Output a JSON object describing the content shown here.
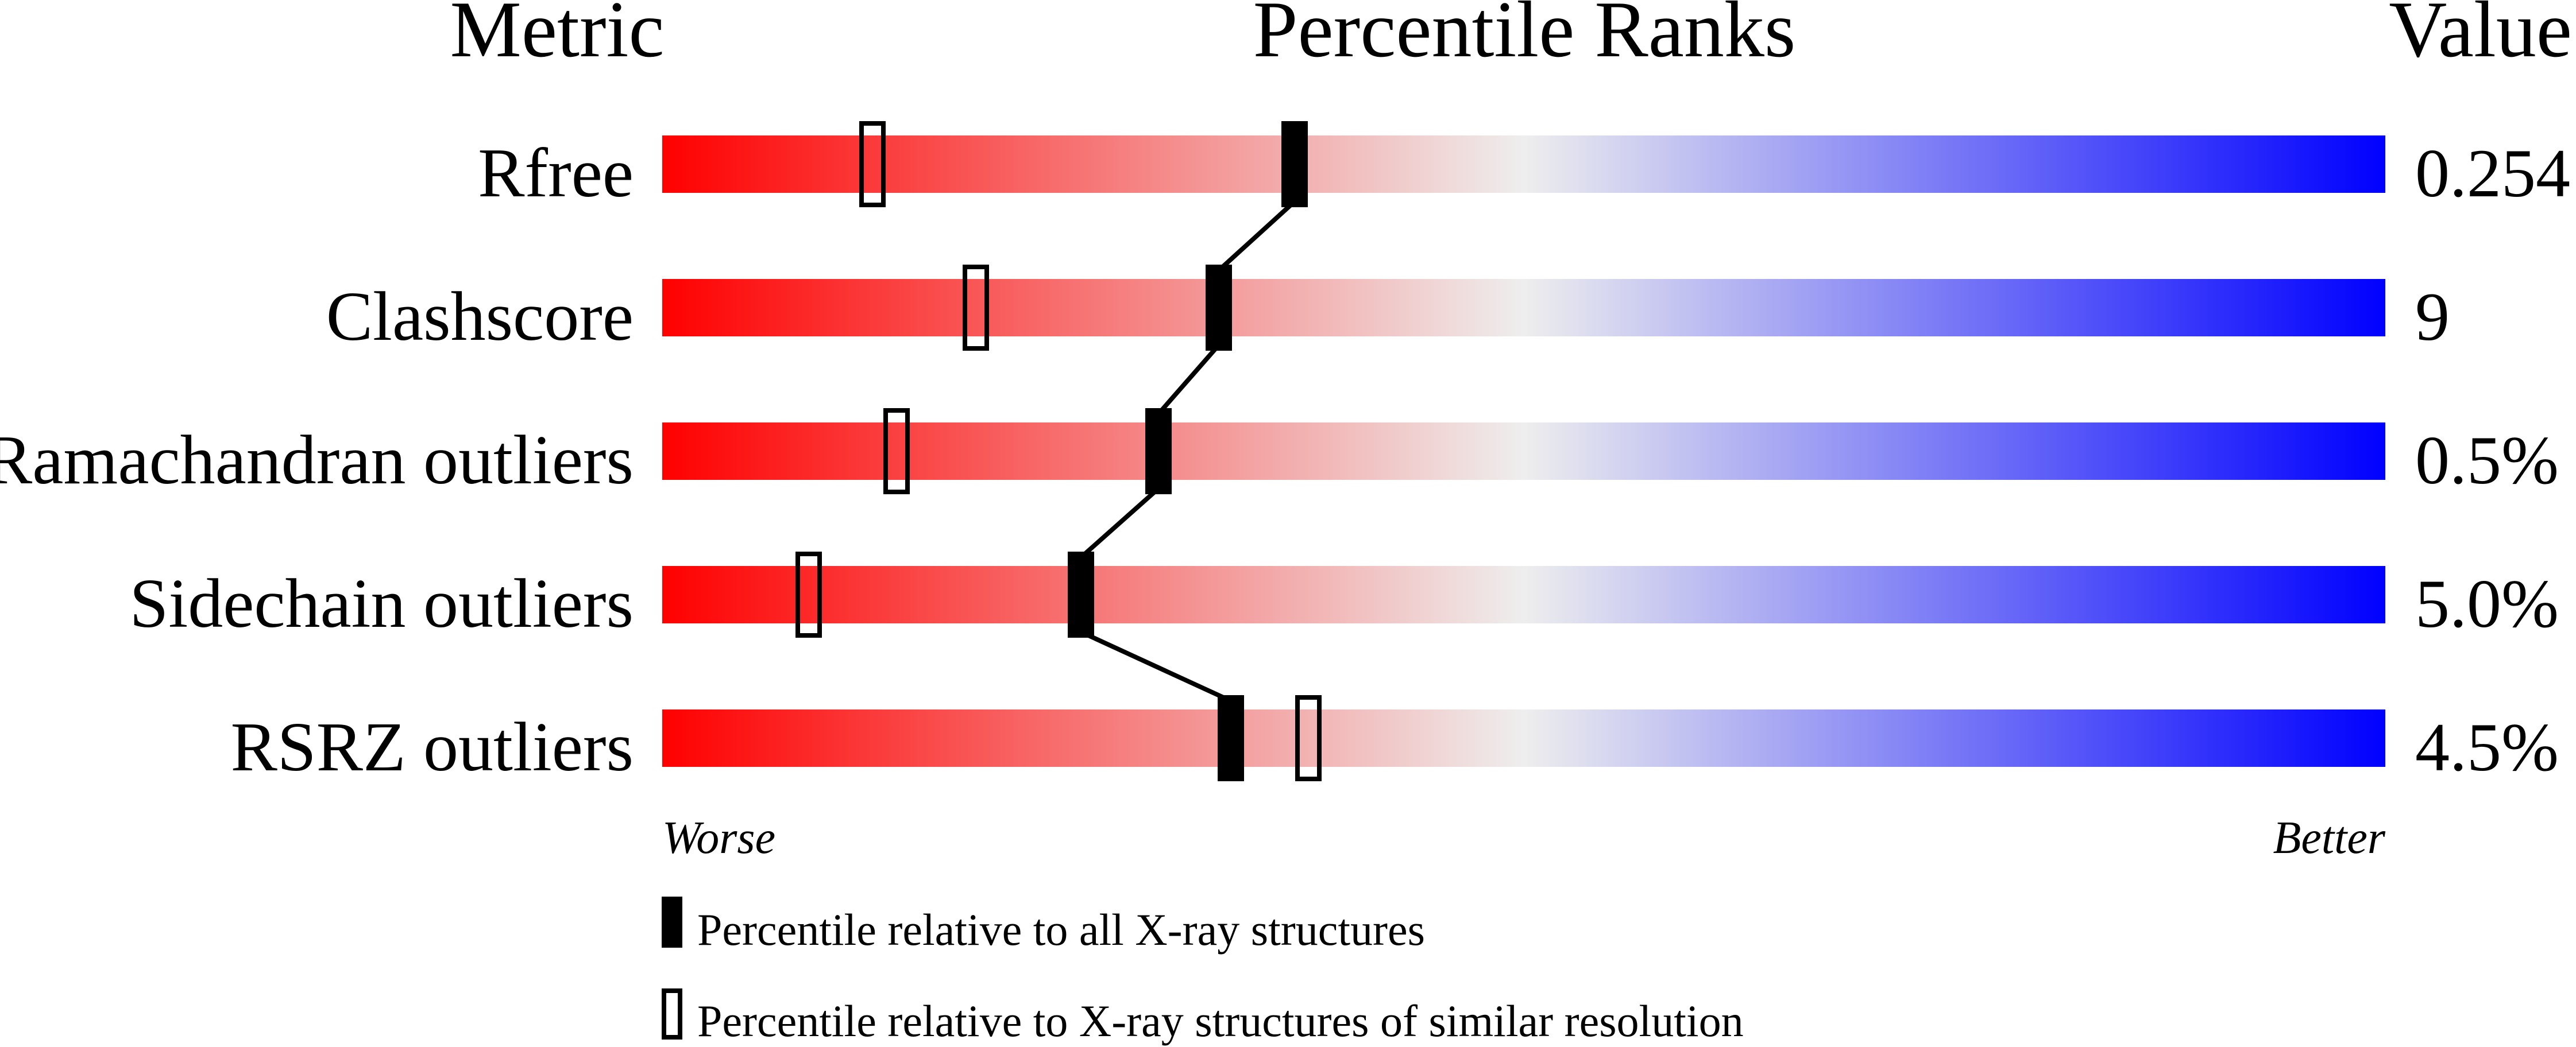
{
  "chart_data": {
    "type": "percentile-slider",
    "headers": {
      "metric": "Metric",
      "ranks": "Percentile Ranks",
      "value": "Value"
    },
    "xlim": [
      0,
      100
    ],
    "gradient_colors": {
      "worse": "#ff0000",
      "middle": "#eeeeee",
      "better": "#0000ff"
    },
    "rows": [
      {
        "metric": "Rfree",
        "value": "0.254",
        "percentile_all": 36.7,
        "percentile_similar": 12.2
      },
      {
        "metric": "Clashscore",
        "value": "9",
        "percentile_all": 32.3,
        "percentile_similar": 18.2
      },
      {
        "metric": "Ramachandran outliers",
        "value": "0.5%",
        "percentile_all": 28.8,
        "percentile_similar": 13.6
      },
      {
        "metric": "Sidechain outliers",
        "value": "5.0%",
        "percentile_all": 24.3,
        "percentile_similar": 8.5
      },
      {
        "metric": "RSRZ outliers",
        "value": "4.5%",
        "percentile_all": 33.0,
        "percentile_similar": 37.5
      }
    ],
    "axis_labels": {
      "left": "Worse",
      "right": "Better"
    },
    "legend": [
      {
        "marker": "filled",
        "label": "Percentile relative to all X-ray structures"
      },
      {
        "marker": "open",
        "label": "Percentile relative to X-ray structures of similar resolution"
      }
    ]
  }
}
